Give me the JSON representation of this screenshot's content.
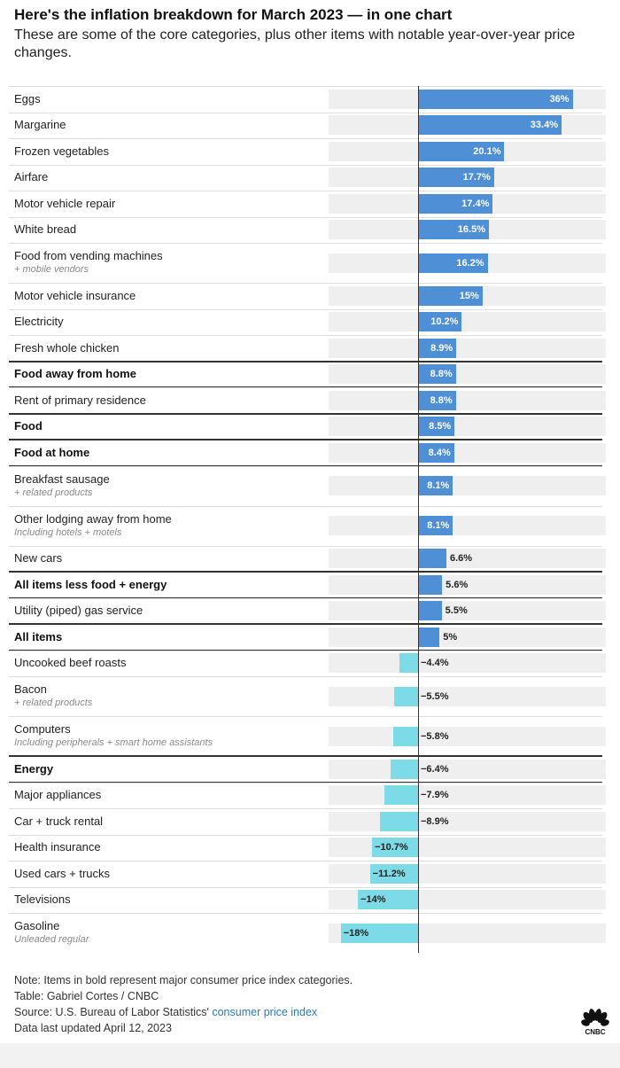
{
  "header": {
    "title": "Here's the inflation breakdown for March 2023 — in one chart",
    "subtitle": "These are some of the core categories, plus other items with notable year-over-year price changes."
  },
  "chart_data": {
    "type": "bar",
    "orientation": "horizontal",
    "value_unit": "%",
    "xlim": [
      -20,
      40
    ],
    "colors": {
      "positive": "#4f8fd6",
      "negative": "#7ddbe8",
      "track": "#efefef",
      "axis": "#333333"
    },
    "rows": [
      {
        "label": "Eggs",
        "sub": "",
        "value": 36,
        "display": "36%",
        "bold": false
      },
      {
        "label": "Margarine",
        "sub": "",
        "value": 33.4,
        "display": "33.4%",
        "bold": false
      },
      {
        "label": "Frozen vegetables",
        "sub": "",
        "value": 20.1,
        "display": "20.1%",
        "bold": false
      },
      {
        "label": "Airfare",
        "sub": "",
        "value": 17.7,
        "display": "17.7%",
        "bold": false
      },
      {
        "label": "Motor vehicle repair",
        "sub": "",
        "value": 17.4,
        "display": "17.4%",
        "bold": false
      },
      {
        "label": "White bread",
        "sub": "",
        "value": 16.5,
        "display": "16.5%",
        "bold": false
      },
      {
        "label": "Food from vending machines",
        "sub": "+ mobile vendors",
        "value": 16.2,
        "display": "16.2%",
        "bold": false
      },
      {
        "label": "Motor vehicle insurance",
        "sub": "",
        "value": 15,
        "display": "15%",
        "bold": false
      },
      {
        "label": "Electricity",
        "sub": "",
        "value": 10.2,
        "display": "10.2%",
        "bold": false
      },
      {
        "label": "Fresh whole chicken",
        "sub": "",
        "value": 8.9,
        "display": "8.9%",
        "bold": false
      },
      {
        "label": "Food away from home",
        "sub": "",
        "value": 8.8,
        "display": "8.8%",
        "bold": true
      },
      {
        "label": "Rent of primary residence",
        "sub": "",
        "value": 8.8,
        "display": "8.8%",
        "bold": false
      },
      {
        "label": "Food",
        "sub": "",
        "value": 8.5,
        "display": "8.5%",
        "bold": true
      },
      {
        "label": "Food at home",
        "sub": "",
        "value": 8.4,
        "display": "8.4%",
        "bold": true
      },
      {
        "label": "Breakfast sausage",
        "sub": "+ related products",
        "value": 8.1,
        "display": "8.1%",
        "bold": false
      },
      {
        "label": "Other lodging away from home",
        "sub": "Including hotels + motels",
        "value": 8.1,
        "display": "8.1%",
        "bold": false
      },
      {
        "label": "New cars",
        "sub": "",
        "value": 6.6,
        "display": "6.6%",
        "bold": false
      },
      {
        "label": "All items less food + energy",
        "sub": "",
        "value": 5.6,
        "display": "5.6%",
        "bold": true
      },
      {
        "label": "Utility (piped) gas service",
        "sub": "",
        "value": 5.5,
        "display": "5.5%",
        "bold": false
      },
      {
        "label": "All items",
        "sub": "",
        "value": 5,
        "display": "5%",
        "bold": true
      },
      {
        "label": "Uncooked beef roasts",
        "sub": "",
        "value": -4.4,
        "display": "−4.4%",
        "bold": false
      },
      {
        "label": "Bacon",
        "sub": "+ related products",
        "value": -5.5,
        "display": "−5.5%",
        "bold": false
      },
      {
        "label": "Computers",
        "sub": "Including peripherals + smart home assistants",
        "value": -5.8,
        "display": "−5.8%",
        "bold": false
      },
      {
        "label": "Energy",
        "sub": "",
        "value": -6.4,
        "display": "−6.4%",
        "bold": true
      },
      {
        "label": "Major appliances",
        "sub": "",
        "value": -7.9,
        "display": "−7.9%",
        "bold": false
      },
      {
        "label": "Car + truck rental",
        "sub": "",
        "value": -8.9,
        "display": "−8.9%",
        "bold": false
      },
      {
        "label": "Health insurance",
        "sub": "",
        "value": -10.7,
        "display": "−10.7%",
        "bold": false
      },
      {
        "label": "Used cars + trucks",
        "sub": "",
        "value": -11.2,
        "display": "−11.2%",
        "bold": false
      },
      {
        "label": "Televisions",
        "sub": "",
        "value": -14,
        "display": "−14%",
        "bold": false
      },
      {
        "label": "Gasoline",
        "sub": "Unleaded regular",
        "value": -18,
        "display": "−18%",
        "bold": false
      }
    ]
  },
  "notes": {
    "note": "Note: Items in bold represent major consumer price index categories.",
    "table_credit": "Table: Gabriel Cortes / CNBC",
    "source_prefix": "Source: U.S. Bureau of Labor Statistics'",
    "source_link": "consumer price index",
    "updated": "Data last updated April 12, 2023"
  },
  "logo": {
    "icon": "peacock-icon",
    "text": "CNBC"
  }
}
